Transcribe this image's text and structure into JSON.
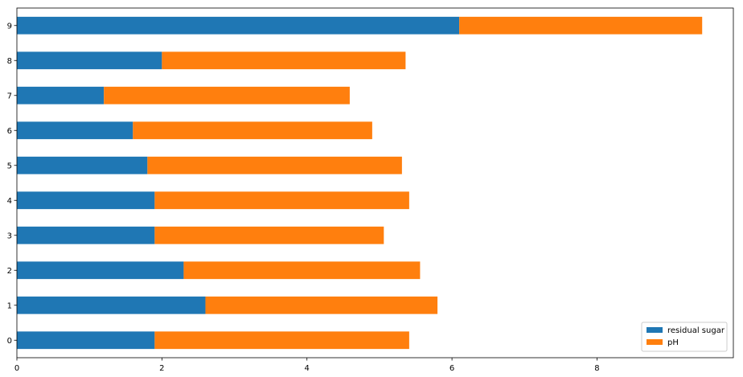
{
  "chart_data": {
    "type": "bar",
    "orientation": "horizontal",
    "stacked": true,
    "categories": [
      "0",
      "1",
      "2",
      "3",
      "4",
      "5",
      "6",
      "7",
      "8",
      "9"
    ],
    "series": [
      {
        "name": "residual sugar",
        "color": "#1f77b4",
        "values": [
          1.9,
          2.6,
          2.3,
          1.9,
          1.9,
          1.8,
          1.6,
          1.2,
          2.0,
          6.1
        ]
      },
      {
        "name": "pH",
        "color": "#ff7f0e",
        "values": [
          3.51,
          3.2,
          3.26,
          3.16,
          3.51,
          3.51,
          3.3,
          3.39,
          3.36,
          3.35
        ]
      }
    ],
    "xticks": [
      "0",
      "2",
      "4",
      "6",
      "8"
    ],
    "xlim": [
      0,
      9.88
    ],
    "title": "",
    "xlabel": "",
    "ylabel": "",
    "grid": false,
    "legend_position": "lower-right"
  }
}
